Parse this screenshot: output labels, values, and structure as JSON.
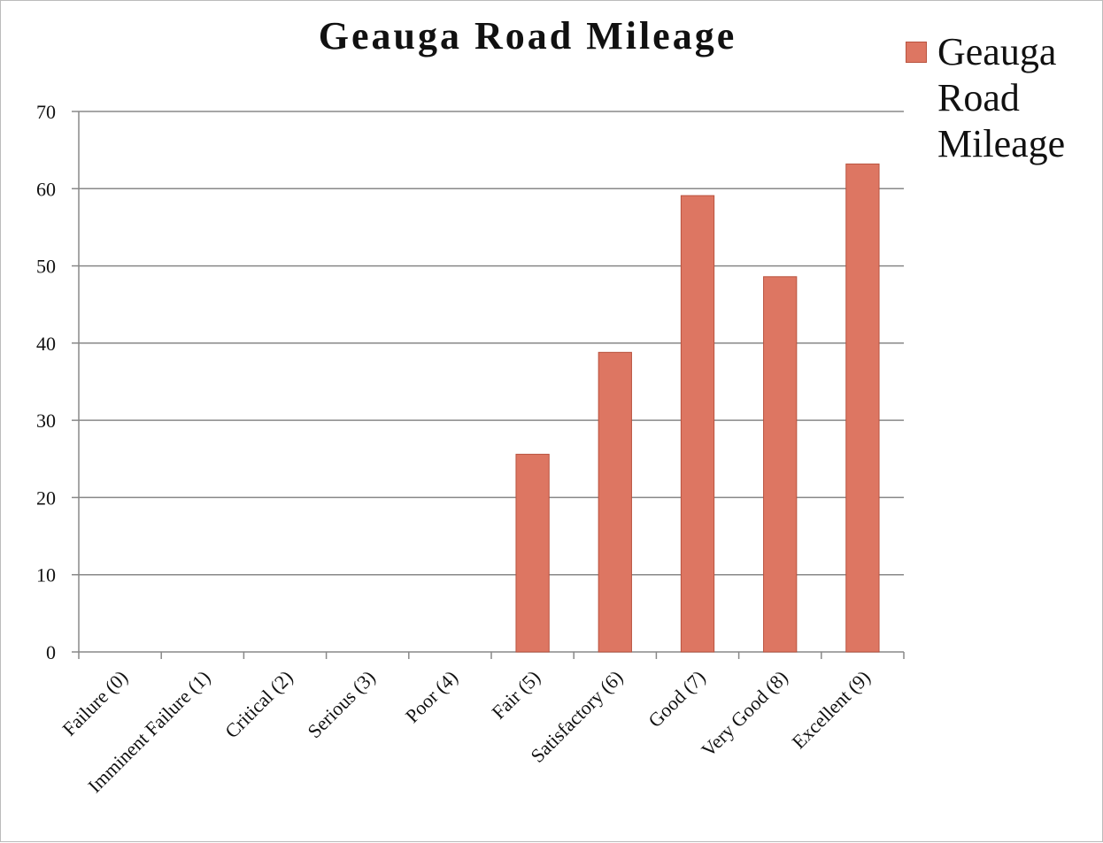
{
  "chart_data": {
    "type": "bar",
    "title": "Geauga Road Mileage",
    "categories": [
      "Failure (0)",
      "Imminent Failure (1)",
      "Critical (2)",
      "Serious (3)",
      "Poor (4)",
      "Fair (5)",
      "Satisfactory (6)",
      "Good (7)",
      "Very Good (8)",
      "Excellent (9)"
    ],
    "series": [
      {
        "name": "Geauga Road Mileage",
        "color": "#dd7662",
        "values": [
          0,
          0,
          0,
          0,
          0,
          25.6,
          38.8,
          59.1,
          48.6,
          63.2
        ]
      }
    ],
    "ylim": [
      0,
      70
    ],
    "yticks": [
      0,
      10,
      20,
      30,
      40,
      50,
      60,
      70
    ],
    "grid": true,
    "legend": "right"
  }
}
